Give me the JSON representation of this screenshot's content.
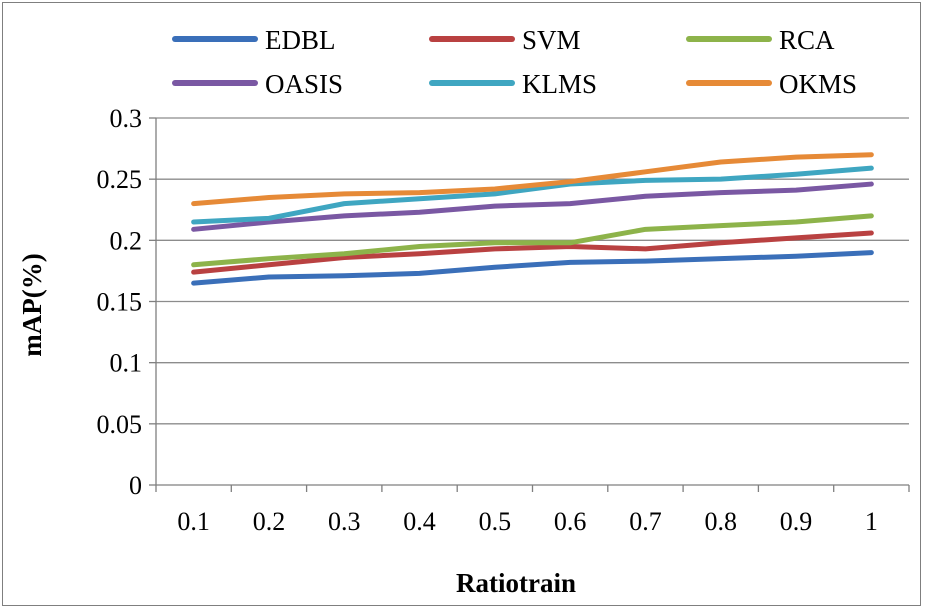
{
  "chart_data": {
    "type": "line",
    "title": "",
    "xlabel": "Ratiotrain",
    "ylabel": "mAP(%)",
    "categories": [
      "0.1",
      "0.2",
      "0.3",
      "0.4",
      "0.5",
      "0.6",
      "0.7",
      "0.8",
      "0.9",
      "1"
    ],
    "y_ticks": [
      "0",
      "0.05",
      "0.1",
      "0.15",
      "0.2",
      "0.25",
      "0.3"
    ],
    "ylim": [
      0,
      0.3
    ],
    "grid": "horizontal",
    "legend_position": "top",
    "series": [
      {
        "name": "EDBL",
        "color": "#3a6fb9",
        "values": [
          0.165,
          0.17,
          0.171,
          0.173,
          0.178,
          0.182,
          0.183,
          0.185,
          0.187,
          0.19
        ]
      },
      {
        "name": "SVM",
        "color": "#b94141",
        "values": [
          0.174,
          0.18,
          0.186,
          0.189,
          0.193,
          0.195,
          0.193,
          0.198,
          0.202,
          0.206
        ]
      },
      {
        "name": "RCA",
        "color": "#8db34a",
        "values": [
          0.18,
          0.185,
          0.189,
          0.195,
          0.198,
          0.198,
          0.209,
          0.212,
          0.215,
          0.22
        ]
      },
      {
        "name": "OASIS",
        "color": "#7a58a3",
        "values": [
          0.209,
          0.215,
          0.22,
          0.223,
          0.228,
          0.23,
          0.236,
          0.239,
          0.241,
          0.246
        ]
      },
      {
        "name": "KLMS",
        "color": "#3fa6c1",
        "values": [
          0.215,
          0.218,
          0.23,
          0.234,
          0.238,
          0.246,
          0.249,
          0.25,
          0.254,
          0.259
        ]
      },
      {
        "name": "OKMS",
        "color": "#e68a37",
        "values": [
          0.23,
          0.235,
          0.238,
          0.239,
          0.242,
          0.248,
          0.256,
          0.264,
          0.268,
          0.27
        ]
      }
    ]
  }
}
